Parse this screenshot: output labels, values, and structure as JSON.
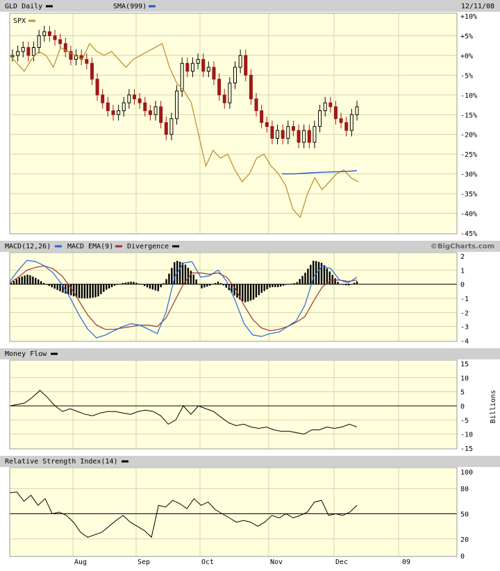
{
  "header": {
    "symbol_label": "GLD Daily",
    "sma_label": "SMA(999)",
    "date": "12/11/08",
    "compare_label": "SPX",
    "watermark": "©BigCharts.com"
  },
  "panels": {
    "macd_label": "MACD(12,26)",
    "macd_ema_label": "MACD EMA(9)",
    "divergence_label": "Divergence",
    "money_flow_label": "Money Flow",
    "money_flow_unit": "Billions",
    "rsi_label": "Relative Strength Index(14)"
  },
  "colors": {
    "price_up": "#000000",
    "price_down": "#a01818",
    "spx": "#c09030",
    "sma": "#2255cc",
    "macd": "#2266dd",
    "macd_ema": "#a03030",
    "divergence": "#000000",
    "plot_bg": "#ffffdd",
    "header_bg": "#cfcfcf"
  },
  "chart_data": [
    {
      "type": "line",
      "title": "GLD Daily",
      "x_tick_labels": [
        "Aug",
        "Sep",
        "Oct",
        "Nov",
        "Dec",
        "09"
      ],
      "y_tick_labels": [
        "+10%",
        "+5%",
        "+0%",
        "-5%",
        "-10%",
        "-15%",
        "-20%",
        "-25%",
        "-30%",
        "-35%",
        "-40%",
        "-45%"
      ],
      "ylim": [
        -45,
        10
      ],
      "grid": true,
      "series": [
        {
          "name": "GLD Daily",
          "kind": "candlestick",
          "values": [
            0,
            1,
            2,
            0,
            2,
            5,
            6,
            5,
            4,
            3,
            1,
            -1,
            0,
            -1,
            -2,
            -6,
            -10,
            -12,
            -14,
            -15,
            -14,
            -12,
            -10,
            -11,
            -12,
            -14,
            -15,
            -13,
            -17,
            -20,
            -16,
            -9,
            -2,
            -4,
            -2,
            -1,
            -4,
            -3,
            -6,
            -10,
            -12,
            -7,
            -3,
            0,
            -5,
            -11,
            -14,
            -17,
            -18,
            -21,
            -19,
            -21,
            -18,
            -19,
            -22,
            -19,
            -22,
            -18,
            -14,
            -12,
            -13,
            -16,
            -17,
            -19,
            -15,
            -13
          ]
        },
        {
          "name": "SPX",
          "values": [
            0,
            -2,
            -4,
            -1,
            1,
            0,
            -3,
            2,
            1,
            0,
            -1,
            3,
            1,
            0,
            1,
            -1,
            -3,
            -1,
            0,
            1,
            2,
            3,
            -3,
            -7,
            -9,
            -12,
            -20,
            -28,
            -24,
            -26,
            -25,
            -29,
            -32,
            -30,
            -26,
            -25,
            -28,
            -30,
            -33,
            -39,
            -41,
            -35,
            -31,
            -34,
            -32,
            -30,
            -29,
            -31,
            -32
          ]
        },
        {
          "name": "SMA(999)",
          "values": [
            -30,
            -30,
            -29.8,
            -29.6,
            -29.5,
            -29.4,
            -29.2
          ]
        }
      ]
    },
    {
      "type": "line",
      "title": "MACD(12,26)",
      "y_tick_labels": [
        "2",
        "1",
        "0",
        "-1",
        "-2",
        "-3",
        "-4"
      ],
      "ylim": [
        -4,
        2
      ],
      "series": [
        {
          "name": "MACD(12,26)",
          "values": [
            0.2,
            1.0,
            1.7,
            1.6,
            1.3,
            0.8,
            0.0,
            -1.0,
            -2.2,
            -3.2,
            -3.8,
            -3.6,
            -3.3,
            -3.0,
            -2.8,
            -2.9,
            -3.2,
            -3.5,
            -2.0,
            0.5,
            1.5,
            1.6,
            0.5,
            0.6,
            1.0,
            0.2,
            -1.2,
            -2.8,
            -3.6,
            -3.7,
            -3.5,
            -3.4,
            -3.0,
            -2.6,
            -1.5,
            0.5,
            1.3,
            1.1,
            0.3,
            0.1,
            0.5
          ]
        },
        {
          "name": "MACD EMA(9)",
          "values": [
            0.1,
            0.5,
            1.0,
            1.2,
            1.3,
            1.1,
            0.6,
            -0.2,
            -1.2,
            -2.2,
            -2.9,
            -3.2,
            -3.2,
            -3.1,
            -3.0,
            -2.9,
            -2.9,
            -3.0,
            -2.4,
            -1.2,
            0.0,
            0.8,
            0.8,
            0.7,
            0.8,
            0.5,
            -0.3,
            -1.5,
            -2.5,
            -3.1,
            -3.3,
            -3.2,
            -3.0,
            -2.7,
            -2.3,
            -1.2,
            -0.2,
            0.3,
            0.3,
            0.2,
            0.3
          ]
        },
        {
          "name": "Divergence",
          "kind": "histogram",
          "values": [
            0.1,
            0.5,
            0.7,
            0.4,
            0.0,
            -0.3,
            -0.6,
            -0.8,
            -1.0,
            -1.0,
            -0.9,
            -0.4,
            -0.1,
            0.1,
            0.2,
            0.0,
            -0.3,
            -0.5,
            0.4,
            1.7,
            1.5,
            0.8,
            -0.3,
            -0.1,
            0.2,
            -0.3,
            -0.9,
            -1.3,
            -1.1,
            -0.6,
            -0.2,
            -0.2,
            0.0,
            0.1,
            0.8,
            1.7,
            1.5,
            0.8,
            0.0,
            -0.1,
            0.2
          ]
        }
      ]
    },
    {
      "type": "line",
      "title": "Money Flow",
      "ylabel": "Billions",
      "y_tick_labels": [
        "15",
        "10",
        "5",
        "0",
        "-5",
        "-10",
        "-15"
      ],
      "ylim": [
        -15,
        15
      ],
      "series": [
        {
          "name": "Money Flow",
          "values": [
            0,
            0.5,
            1,
            3,
            5.5,
            3,
            0,
            -2,
            -1,
            -2,
            -3,
            -3.5,
            -2.5,
            -2,
            -2,
            -2.5,
            -3,
            -2,
            -1.5,
            -2,
            -3.5,
            -6.5,
            -5,
            0,
            -3,
            0,
            -1,
            -2,
            -4,
            -6,
            -7,
            -6.5,
            -7.5,
            -8,
            -7.5,
            -8.5,
            -9,
            -9,
            -9.5,
            -10,
            -8.5,
            -8.5,
            -7.5,
            -8,
            -7.5,
            -6.5,
            -7.5
          ]
        }
      ]
    },
    {
      "type": "line",
      "title": "Relative Strength Index(14)",
      "y_tick_labels": [
        "100",
        "80",
        "50",
        "20",
        "0"
      ],
      "ylim": [
        0,
        100
      ],
      "series": [
        {
          "name": "Relative Strength Index(14)",
          "values": [
            75,
            76,
            65,
            72,
            60,
            68,
            50,
            52,
            48,
            40,
            28,
            22,
            25,
            28,
            35,
            42,
            48,
            40,
            35,
            30,
            22,
            60,
            58,
            66,
            62,
            56,
            68,
            60,
            64,
            55,
            50,
            45,
            40,
            42,
            40,
            35,
            40,
            48,
            45,
            50,
            45,
            48,
            52,
            64,
            66,
            48,
            50,
            48,
            52,
            60
          ]
        }
      ]
    }
  ]
}
